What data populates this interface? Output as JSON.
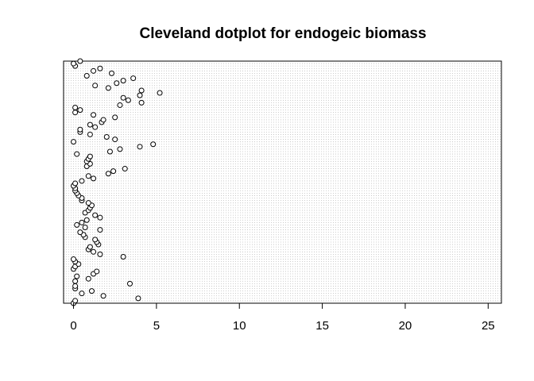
{
  "chart_data": {
    "type": "scatter",
    "title": "Cleveland dotplot for endogeic biomass",
    "xlabel": "",
    "ylabel": "",
    "xlim": [
      -0.6,
      25.8
    ],
    "xticks": [
      0,
      5,
      10,
      15,
      20,
      25
    ],
    "grid": true,
    "series": [
      {
        "x": [
          0.0,
          0.1,
          3.9,
          1.8,
          0.5,
          1.1,
          0.1,
          0.1,
          3.4,
          0.1,
          0.9,
          0.2,
          1.2,
          1.4,
          0.0,
          0.1,
          0.3,
          0.1,
          0.0,
          3.0,
          1.6,
          1.2,
          0.9,
          1.0,
          1.5,
          1.4,
          1.3,
          0.7,
          0.6,
          0.4,
          1.6,
          0.7,
          0.2,
          0.5,
          0.8,
          1.6,
          1.3,
          0.7,
          0.9,
          1.0,
          1.1,
          0.9,
          0.5,
          0.5,
          0.3,
          0.2,
          0.1,
          0.1,
          0.0,
          0.1,
          0.5,
          1.2,
          0.9,
          2.1,
          2.4,
          3.1,
          0.8,
          1.0,
          0.8,
          0.9,
          1.0,
          0.2,
          2.2,
          2.8,
          4.0,
          4.8,
          0.0,
          2.5,
          2.0,
          1.0,
          0.4,
          0.4,
          1.3,
          1.0,
          1.7,
          1.8,
          2.5,
          1.2,
          0.1,
          0.4,
          0.1,
          2.8,
          4.1,
          3.3,
          3.0,
          4.0,
          5.2,
          4.1,
          2.1,
          1.3,
          2.6,
          3.0,
          3.6,
          0.8,
          2.3,
          1.2,
          1.6,
          0.1,
          0.0,
          0.4
        ],
        "y": [
          1,
          2,
          3,
          4,
          5,
          6,
          7,
          8,
          9,
          10,
          11,
          12,
          13,
          14,
          15,
          16,
          17,
          18,
          19,
          20,
          21,
          22,
          23,
          24,
          25,
          26,
          27,
          28,
          29,
          30,
          31,
          32,
          33,
          34,
          35,
          36,
          37,
          38,
          39,
          40,
          41,
          42,
          43,
          44,
          45,
          46,
          47,
          48,
          49,
          50,
          51,
          52,
          53,
          54,
          55,
          56,
          57,
          58,
          59,
          60,
          61,
          62,
          63,
          64,
          65,
          66,
          67,
          68,
          69,
          70,
          71,
          72,
          73,
          74,
          75,
          76,
          77,
          78,
          79,
          80,
          81,
          82,
          83,
          84,
          85,
          86,
          87,
          88,
          89,
          90,
          91,
          92,
          93,
          94,
          95,
          96,
          97,
          98,
          99,
          100
        ]
      }
    ]
  }
}
